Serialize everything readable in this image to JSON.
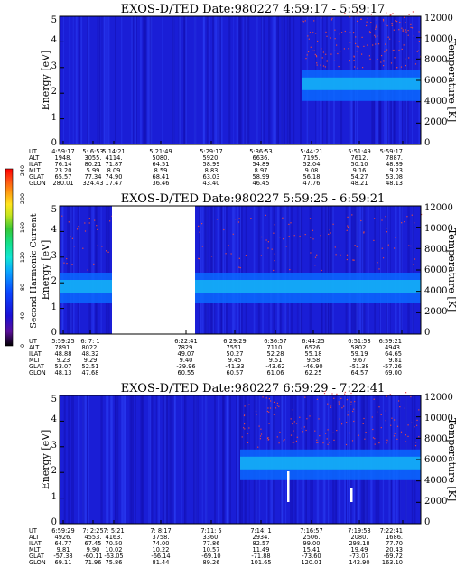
{
  "colorbar": {
    "label": "Second Harmonic Current",
    "ticks": [
      "0",
      "40",
      "80",
      "120",
      "160",
      "200",
      "240"
    ],
    "min": 0,
    "max": 240,
    "colors": [
      "#000000",
      "#5a0f9a",
      "#1a0fd6",
      "#0a45ff",
      "#0aa6ff",
      "#12e6d4",
      "#13e08a",
      "#36c836",
      "#c8e61e",
      "#ffe51e",
      "#ff9a12",
      "#ff4a14",
      "#ff0000"
    ]
  },
  "panels": [
    {
      "title": "EXOS-D/TED   Date:980227  4:59:17 - 5:59:17",
      "ylabel": "Energy [eV]",
      "y2label": "Temperature [K]",
      "yticks": [
        "0",
        "1",
        "2",
        "3",
        "4",
        "5"
      ],
      "y2ticks": [
        "0",
        "2000",
        "4000",
        "6000",
        "8000",
        "10000",
        "12000"
      ],
      "band_start": 0.67,
      "band_energy": 2.4,
      "rows": [
        {
          "label": "UT",
          "values": [
            "4:59:17",
            "5: 6:53",
            "5:14:21",
            "5:21:49",
            "5:29:17",
            "5:36:53",
            "5:44:21",
            "5:51:49",
            "5:59:17"
          ]
        },
        {
          "label": "ALT",
          "values": [
            "1948.",
            "3055.",
            "4114.",
            "5080.",
            "5920.",
            "6636.",
            "7195.",
            "7612.",
            "7887."
          ]
        },
        {
          "label": "ILAT",
          "values": [
            "76.14",
            "80.21",
            "71.87",
            "64.51",
            "58.99",
            "54.89",
            "52.04",
            "50.10",
            "48.89"
          ]
        },
        {
          "label": "MLT",
          "values": [
            "23.20",
            "5.99",
            "8.09",
            "8.59",
            "8.83",
            "8.97",
            "9.08",
            "9.16",
            "9.23"
          ]
        },
        {
          "label": "GLAT",
          "values": [
            "65.57",
            "77.34",
            "74.90",
            "68.41",
            "63.03",
            "58.99",
            "56.18",
            "54.27",
            "53.08"
          ]
        },
        {
          "label": "GLON",
          "values": [
            "280.01",
            "324.43",
            "17.47",
            "36.46",
            "43.40",
            "46.45",
            "47.76",
            "48.21",
            "48.13"
          ]
        }
      ]
    },
    {
      "title": "EXOS-D/TED   Date:980227  5:59:25 - 6:59:21",
      "ylabel": "Energy [eV]",
      "y2label": "Temperature [K]",
      "yticks": [
        "0",
        "1",
        "2",
        "3",
        "4",
        "5"
      ],
      "y2ticks": [
        "0",
        "2000",
        "4000",
        "6000",
        "8000",
        "10000",
        "12000"
      ],
      "band_start": 0.0,
      "band_energy": 1.9,
      "gap": [
        0.145,
        0.375
      ],
      "rows": [
        {
          "label": "UT",
          "values": [
            "5:59:25",
            "6: 7: 1",
            "",
            "",
            "6:22:41",
            "6:29:29",
            "6:36:57",
            "6:44:25",
            "6:51:53",
            "6:59:21"
          ]
        },
        {
          "label": "ALT",
          "values": [
            "7891.",
            "8022.",
            "",
            "",
            "7829.",
            "7551.",
            "7110.",
            "6526.",
            "5802.",
            "4943."
          ]
        },
        {
          "label": "ILAT",
          "values": [
            "48.88",
            "48.32",
            "",
            "",
            "49.07",
            "50.27",
            "52.28",
            "55.18",
            "59.19",
            "64.65"
          ]
        },
        {
          "label": "MLT",
          "values": [
            "9.23",
            "9.29",
            "",
            "",
            "9.40",
            "9.45",
            "9.51",
            "9.58",
            "9.67",
            "9.81"
          ]
        },
        {
          "label": "GLAT",
          "values": [
            "53.07",
            "52.51",
            "",
            "",
            "-39.96",
            "-41.33",
            "-43.62",
            "-46.90",
            "-51.38",
            "-57.26"
          ]
        },
        {
          "label": "GLON",
          "values": [
            "48.13",
            "47.68",
            "",
            "",
            "60.55",
            "60.57",
            "61.06",
            "62.25",
            "64.57",
            "69.00"
          ]
        }
      ]
    },
    {
      "title": "EXOS-D/TED   Date:980227  6:59:29 - 7:22:41",
      "ylabel": "Energy [eV]",
      "y2label": "Temperature [K]",
      "yticks": [
        "0",
        "1",
        "2",
        "3",
        "4",
        "5"
      ],
      "y2ticks": [
        "0",
        "2000",
        "4000",
        "6000",
        "8000",
        "10000",
        "12000"
      ],
      "band_start": 0.5,
      "band_energy": 2.4,
      "rows": [
        {
          "label": "UT",
          "values": [
            "6:59:29",
            "7: 2:25",
            "7: 5:21",
            "7: 8:17",
            "7:11: 5",
            "7:14: 1",
            "7:16:57",
            "7:19:53",
            "7:22:41"
          ]
        },
        {
          "label": "ALT",
          "values": [
            "4926.",
            "4553.",
            "4163.",
            "3758.",
            "3360.",
            "2934.",
            "2506.",
            "2080.",
            "1686."
          ]
        },
        {
          "label": "ILAT",
          "values": [
            "64.77",
            "67.45",
            "70.50",
            "74.00",
            "77.86",
            "82.57",
            "99.00",
            "298.18",
            "77.70"
          ]
        },
        {
          "label": "MLT",
          "values": [
            "9.81",
            "9.90",
            "10.02",
            "10.22",
            "10.57",
            "11.49",
            "15.41",
            "19.49",
            "20.43"
          ]
        },
        {
          "label": "GLAT",
          "values": [
            "-57.38",
            "-60.11",
            "-63.05",
            "-66.14",
            "-69.10",
            "-71.88",
            "-73.60",
            "-73.07",
            "-69.72"
          ]
        },
        {
          "label": "GLON",
          "values": [
            "69.11",
            "71.96",
            "75.86",
            "81.44",
            "89.26",
            "101.65",
            "120.01",
            "142.90",
            "163.10"
          ]
        }
      ]
    }
  ]
}
